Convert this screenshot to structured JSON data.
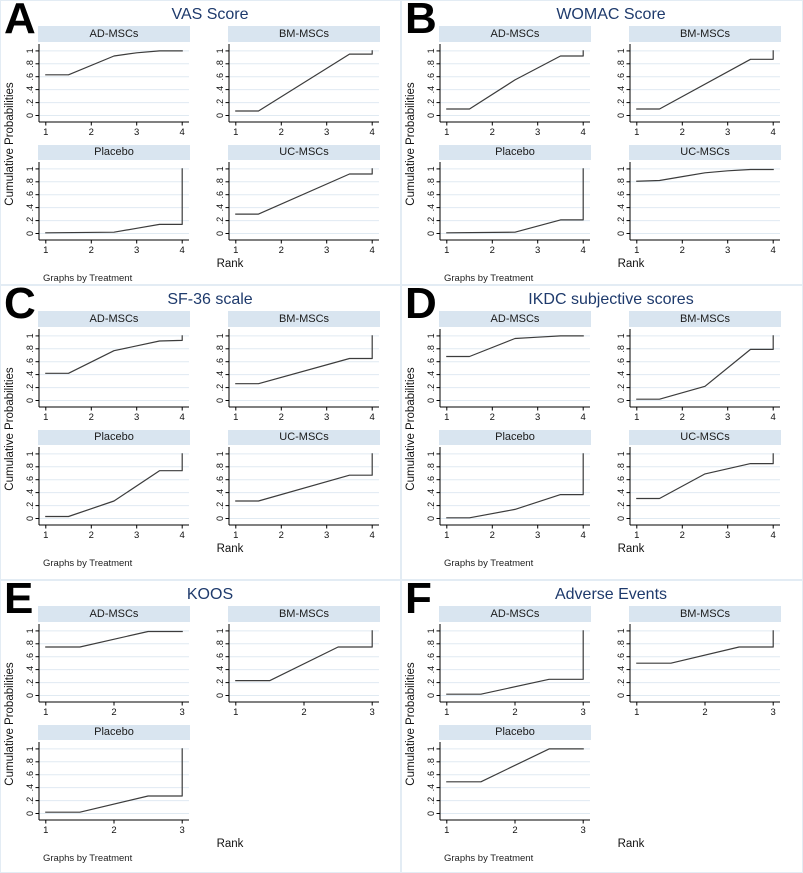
{
  "figure": {
    "ylabel": "Cumulative Probabilities",
    "xlabel": "Rank",
    "footnote": "Graphs by Treatment",
    "ytick_labels": [
      "0",
      ".2",
      ".4",
      ".6",
      ".8",
      "1"
    ],
    "colors": {
      "title": "#1e3a6c",
      "header_bg": "#d9e5f0",
      "line": "#3c3c3c",
      "grid_line": "#e0eaf2",
      "axis": "#000000",
      "panel_border": "#e3ecf4"
    }
  },
  "chart_data": [
    {
      "panel": "A",
      "title": "VAS Score",
      "type": "line",
      "xlabel": "Rank",
      "ylabel": "Cumulative Probabilities",
      "xticks": [
        1,
        2,
        3,
        4
      ],
      "yticks": [
        0,
        0.2,
        0.4,
        0.6,
        0.8,
        1
      ],
      "ylim": [
        0,
        1
      ],
      "grid": true,
      "series": [
        {
          "name": "AD-MSCs",
          "x": [
            1,
            1.5,
            2.5,
            3,
            3.5,
            4
          ],
          "y": [
            0.63,
            0.63,
            0.92,
            0.97,
            1,
            1
          ]
        },
        {
          "name": "BM-MSCs",
          "x": [
            1,
            1.5,
            3.5,
            4,
            4
          ],
          "y": [
            0.07,
            0.07,
            0.95,
            0.95,
            1
          ]
        },
        {
          "name": "Placebo",
          "x": [
            1,
            2.5,
            3,
            3.5,
            4,
            4
          ],
          "y": [
            0.01,
            0.02,
            0.08,
            0.14,
            0.14,
            1
          ]
        },
        {
          "name": "UC-MSCs",
          "x": [
            1,
            1.5,
            3.5,
            4,
            4
          ],
          "y": [
            0.3,
            0.3,
            0.92,
            0.92,
            1
          ]
        }
      ]
    },
    {
      "panel": "B",
      "title": "WOMAC Score",
      "type": "line",
      "xlabel": "Rank",
      "ylabel": "Cumulative Probabilities",
      "xticks": [
        1,
        2,
        3,
        4
      ],
      "yticks": [
        0,
        0.2,
        0.4,
        0.6,
        0.8,
        1
      ],
      "ylim": [
        0,
        1
      ],
      "grid": true,
      "series": [
        {
          "name": "AD-MSCs",
          "x": [
            1,
            1.5,
            2.5,
            3.5,
            4,
            4
          ],
          "y": [
            0.1,
            0.1,
            0.55,
            0.92,
            0.92,
            1
          ]
        },
        {
          "name": "BM-MSCs",
          "x": [
            1,
            1.5,
            3.5,
            4,
            4
          ],
          "y": [
            0.1,
            0.1,
            0.87,
            0.87,
            1
          ]
        },
        {
          "name": "Placebo",
          "x": [
            1,
            2.5,
            3.5,
            4,
            4
          ],
          "y": [
            0.01,
            0.02,
            0.21,
            0.21,
            1
          ]
        },
        {
          "name": "UC-MSCs",
          "x": [
            1,
            1.5,
            2,
            2.5,
            3,
            3.5,
            4
          ],
          "y": [
            0.81,
            0.82,
            0.88,
            0.94,
            0.97,
            0.99,
            0.99
          ]
        }
      ]
    },
    {
      "panel": "C",
      "title": "SF-36 scale",
      "type": "line",
      "xlabel": "Rank",
      "ylabel": "Cumulative Probabilities",
      "xticks": [
        1,
        2,
        3,
        4
      ],
      "yticks": [
        0,
        0.2,
        0.4,
        0.6,
        0.8,
        1
      ],
      "ylim": [
        0,
        1
      ],
      "grid": true,
      "series": [
        {
          "name": "AD-MSCs",
          "x": [
            1,
            1.5,
            2.5,
            3.5,
            4,
            4
          ],
          "y": [
            0.42,
            0.42,
            0.77,
            0.92,
            0.93,
            1
          ]
        },
        {
          "name": "BM-MSCs",
          "x": [
            1,
            1.5,
            3.5,
            4,
            4
          ],
          "y": [
            0.26,
            0.26,
            0.65,
            0.65,
            1
          ]
        },
        {
          "name": "Placebo",
          "x": [
            1,
            1.5,
            2.5,
            3.5,
            4,
            4
          ],
          "y": [
            0.03,
            0.03,
            0.27,
            0.74,
            0.74,
            1
          ]
        },
        {
          "name": "UC-MSCs",
          "x": [
            1,
            1.5,
            3.5,
            4,
            4
          ],
          "y": [
            0.27,
            0.27,
            0.67,
            0.67,
            1
          ]
        }
      ]
    },
    {
      "panel": "D",
      "title": "IKDC subjective scores",
      "type": "line",
      "xlabel": "Rank",
      "ylabel": "Cumulative Probabilities",
      "xticks": [
        1,
        2,
        3,
        4
      ],
      "yticks": [
        0,
        0.2,
        0.4,
        0.6,
        0.8,
        1
      ],
      "ylim": [
        0,
        1
      ],
      "grid": true,
      "series": [
        {
          "name": "AD-MSCs",
          "x": [
            1,
            1.5,
            2.5,
            3,
            3.5,
            4
          ],
          "y": [
            0.68,
            0.68,
            0.96,
            0.98,
            1,
            1
          ]
        },
        {
          "name": "BM-MSCs",
          "x": [
            1,
            1.5,
            2.5,
            3.5,
            4,
            4
          ],
          "y": [
            0.02,
            0.02,
            0.22,
            0.79,
            0.79,
            1
          ]
        },
        {
          "name": "Placebo",
          "x": [
            1,
            1.5,
            2.5,
            3.5,
            4,
            4
          ],
          "y": [
            0.01,
            0.01,
            0.14,
            0.37,
            0.37,
            1
          ]
        },
        {
          "name": "UC-MSCs",
          "x": [
            1,
            1.5,
            2.5,
            3.5,
            4,
            4
          ],
          "y": [
            0.31,
            0.31,
            0.69,
            0.85,
            0.85,
            1
          ]
        }
      ]
    },
    {
      "panel": "E",
      "title": "KOOS",
      "type": "line",
      "xlabel": "Rank",
      "ylabel": "Cumulative Probabilities",
      "xticks": [
        1,
        2,
        3
      ],
      "yticks": [
        0,
        0.2,
        0.4,
        0.6,
        0.8,
        1
      ],
      "ylim": [
        0,
        1
      ],
      "grid": true,
      "series": [
        {
          "name": "AD-MSCs",
          "x": [
            1,
            1.5,
            2.5,
            3
          ],
          "y": [
            0.75,
            0.75,
            0.99,
            0.99
          ]
        },
        {
          "name": "BM-MSCs",
          "x": [
            1,
            1.5,
            2.5,
            3,
            3
          ],
          "y": [
            0.23,
            0.23,
            0.75,
            0.75,
            1
          ]
        },
        {
          "name": "Placebo",
          "x": [
            1,
            1.5,
            2.5,
            3,
            3
          ],
          "y": [
            0.02,
            0.02,
            0.27,
            0.27,
            1
          ]
        }
      ]
    },
    {
      "panel": "F",
      "title": "Adverse Events",
      "type": "line",
      "xlabel": "Rank",
      "ylabel": "Cumulative Probabilities",
      "xticks": [
        1,
        2,
        3
      ],
      "yticks": [
        0,
        0.2,
        0.4,
        0.6,
        0.8,
        1
      ],
      "ylim": [
        0,
        1
      ],
      "grid": true,
      "series": [
        {
          "name": "AD-MSCs",
          "x": [
            1,
            1.5,
            2.5,
            3,
            3
          ],
          "y": [
            0.02,
            0.02,
            0.25,
            0.25,
            1
          ]
        },
        {
          "name": "BM-MSCs",
          "x": [
            1,
            1.5,
            2.5,
            3,
            3
          ],
          "y": [
            0.5,
            0.5,
            0.75,
            0.75,
            1
          ]
        },
        {
          "name": "Placebo",
          "x": [
            1,
            1.5,
            2.5,
            3
          ],
          "y": [
            0.49,
            0.49,
            1,
            1
          ]
        }
      ]
    }
  ]
}
